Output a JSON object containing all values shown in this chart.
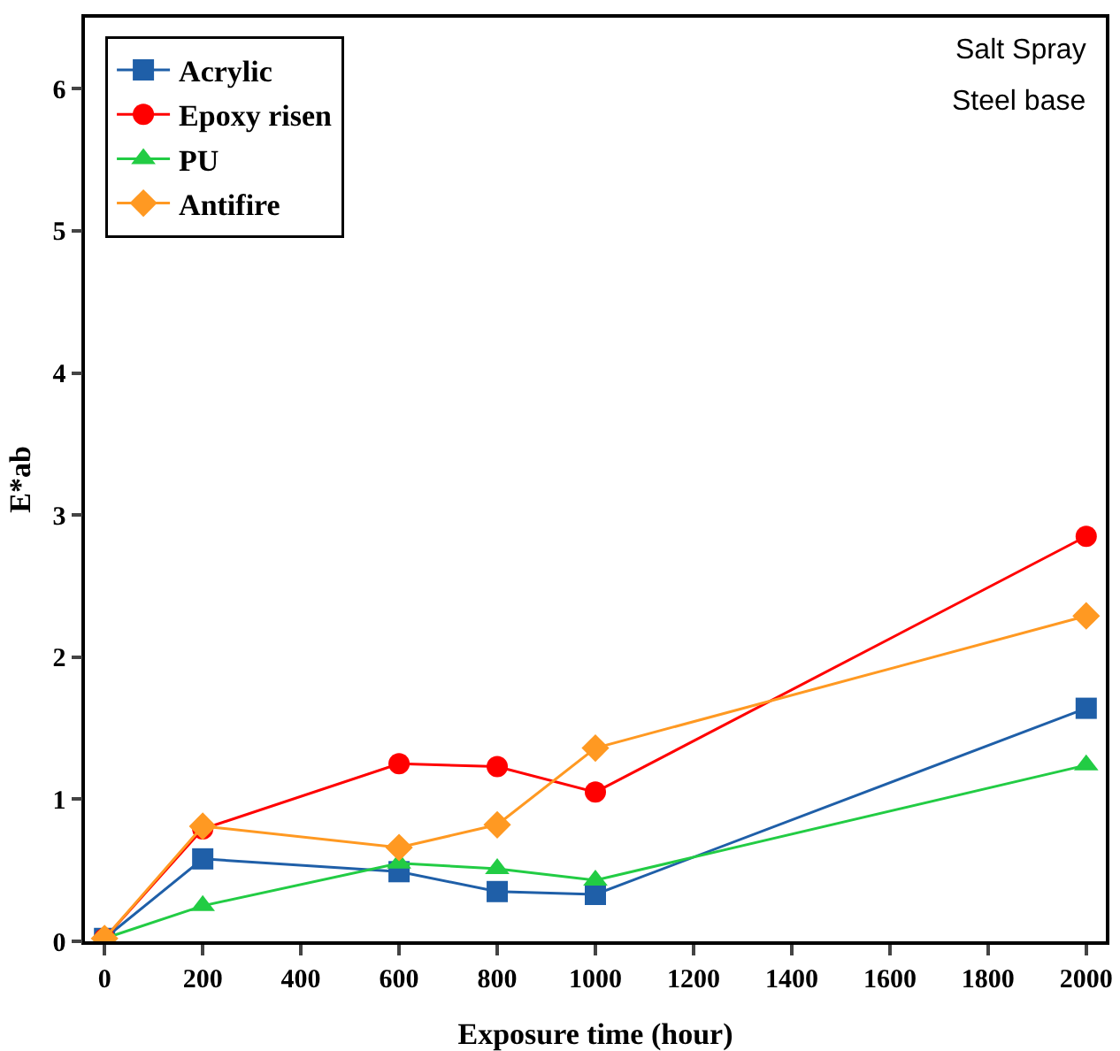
{
  "chart_data": {
    "type": "line",
    "xlabel": "Exposure time (hour)",
    "ylabel": "E*ab",
    "x": [
      0,
      200,
      600,
      800,
      1000,
      2000
    ],
    "series": [
      {
        "name": "Acrylic",
        "color": "#1f5fa8",
        "marker": "square",
        "values": [
          0.02,
          0.58,
          0.49,
          0.35,
          0.33,
          1.64
        ]
      },
      {
        "name": "Epoxy risen",
        "color": "#ff0000",
        "marker": "circle",
        "values": [
          0.02,
          0.79,
          1.25,
          1.23,
          1.05,
          2.85
        ]
      },
      {
        "name": "PU",
        "color": "#22cc44",
        "marker": "triangle",
        "values": [
          0.02,
          0.25,
          0.55,
          0.51,
          0.43,
          1.24
        ]
      },
      {
        "name": "Antifire",
        "color": "#ff9922",
        "marker": "diamond",
        "values": [
          0.02,
          0.81,
          0.66,
          0.82,
          1.36,
          2.29
        ]
      }
    ],
    "xlim": [
      -40,
      2040
    ],
    "xticks": [
      0,
      200,
      400,
      600,
      800,
      1000,
      1200,
      1400,
      1600,
      1800,
      2000
    ],
    "ylim": [
      0,
      6.5
    ],
    "yticks": [
      0,
      1,
      2,
      3,
      4,
      5,
      6
    ],
    "grid": false,
    "legend": "top left",
    "annotations": [
      "Salt Spray",
      "Steel base"
    ]
  }
}
